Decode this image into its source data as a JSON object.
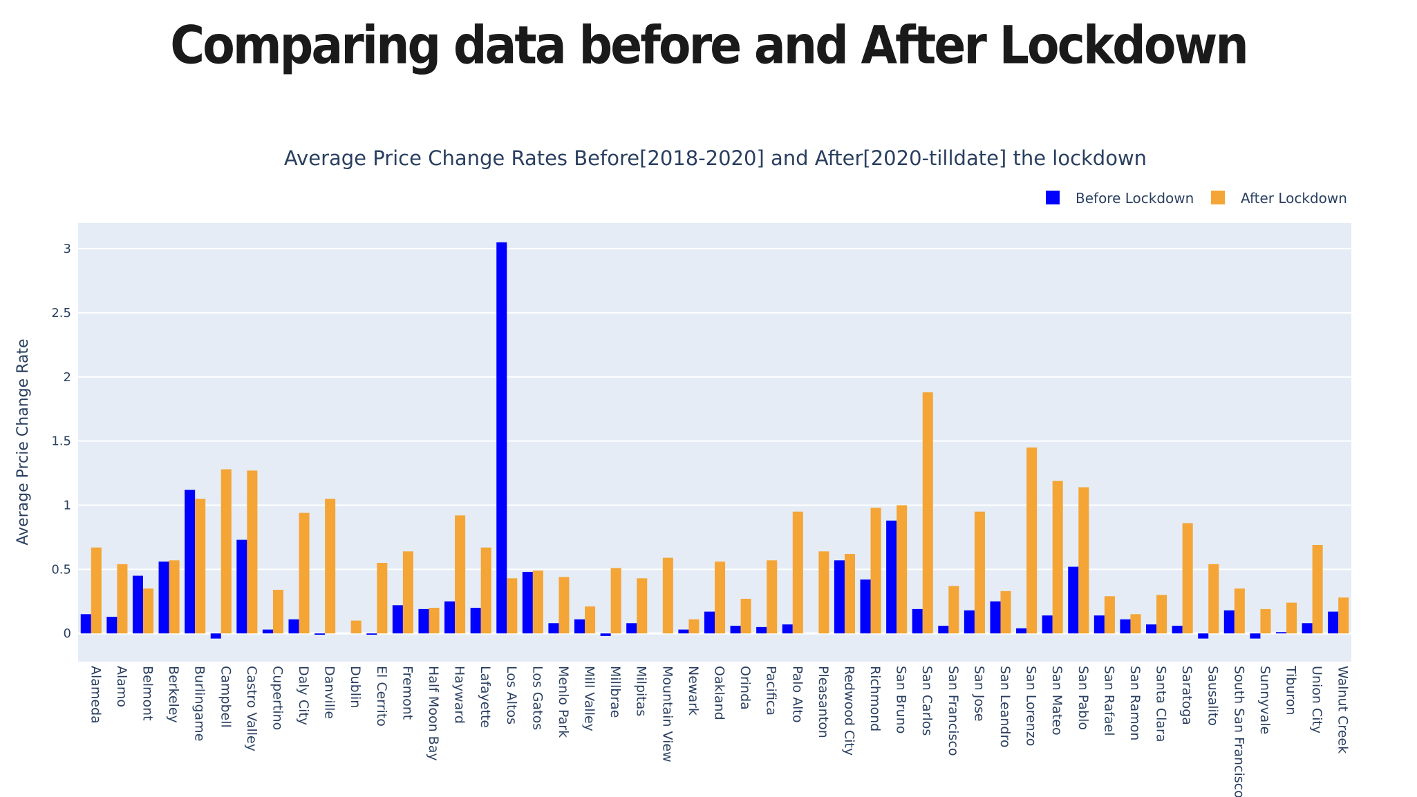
{
  "page": {
    "heading": "Comparing data before and After Lockdown"
  },
  "chart_data": {
    "type": "bar",
    "title": "Average Price Change Rates Before[2018-2020] and After[2020-tilldate] the lockdown",
    "xlabel": "",
    "ylabel": "Average Prcie Change Rate",
    "ylim": [
      -0.22,
      3.2
    ],
    "yticks": [
      0,
      0.5,
      1,
      1.5,
      2,
      2.5,
      3
    ],
    "ytick_labels": [
      "0",
      "0.5",
      "1",
      "1.5",
      "2",
      "2.5",
      "3"
    ],
    "grid": true,
    "legend": "top-right",
    "categories": [
      "Alameda",
      "Alamo",
      "Belmont",
      "Berkeley",
      "Burlingame",
      "Campbell",
      "Castro Valley",
      "Cupertino",
      "Daly City",
      "Danville",
      "Dublin",
      "El Cerrito",
      "Fremont",
      "Half Moon Bay",
      "Hayward",
      "Lafayette",
      "Los Altos",
      "Los Gatos",
      "Menlo Park",
      "Mill Valley",
      "Millbrae",
      "Milpitas",
      "Mountain View",
      "Newark",
      "Oakland",
      "Orinda",
      "Pacifica",
      "Palo Alto",
      "Pleasanton",
      "Redwood City",
      "Richmond",
      "San Bruno",
      "San Carlos",
      "San Francisco",
      "San Jose",
      "San Leandro",
      "San Lorenzo",
      "San Mateo",
      "San Pablo",
      "San Rafael",
      "San Ramon",
      "Santa Clara",
      "Saratoga",
      "Sausalito",
      "South San Francisco",
      "Sunnyvale",
      "Tiburon",
      "Union City",
      "Walnut Creek"
    ],
    "series": [
      {
        "name": "Before Lockdown",
        "color": "#0000ff",
        "values": [
          0.15,
          0.13,
          0.45,
          0.56,
          1.12,
          -0.04,
          0.73,
          0.03,
          0.11,
          -0.01,
          0.0,
          -0.01,
          0.22,
          0.19,
          0.25,
          0.2,
          3.05,
          0.48,
          0.08,
          0.11,
          -0.02,
          0.08,
          0.0,
          0.03,
          0.17,
          0.06,
          0.05,
          0.07,
          0.0,
          0.57,
          0.42,
          0.88,
          0.19,
          0.06,
          0.18,
          0.25,
          0.04,
          0.14,
          0.52,
          0.14,
          0.11,
          0.07,
          0.06,
          -0.04,
          0.18,
          -0.04,
          0.01,
          0.08,
          0.17
        ]
      },
      {
        "name": "After Lockdown",
        "color": "#f4a535",
        "values": [
          0.67,
          0.54,
          0.35,
          0.57,
          1.05,
          1.28,
          1.27,
          0.34,
          0.94,
          1.05,
          0.1,
          0.55,
          0.64,
          0.2,
          0.92,
          0.67,
          0.43,
          0.49,
          0.44,
          0.21,
          0.51,
          0.43,
          0.59,
          0.11,
          0.56,
          0.27,
          0.57,
          0.95,
          0.64,
          0.62,
          0.98,
          1.0,
          1.88,
          0.37,
          0.95,
          0.33,
          1.45,
          1.19,
          1.14,
          0.29,
          0.15,
          0.3,
          0.86,
          0.54,
          0.35,
          0.19,
          0.24,
          0.69,
          0.28
        ]
      }
    ]
  }
}
